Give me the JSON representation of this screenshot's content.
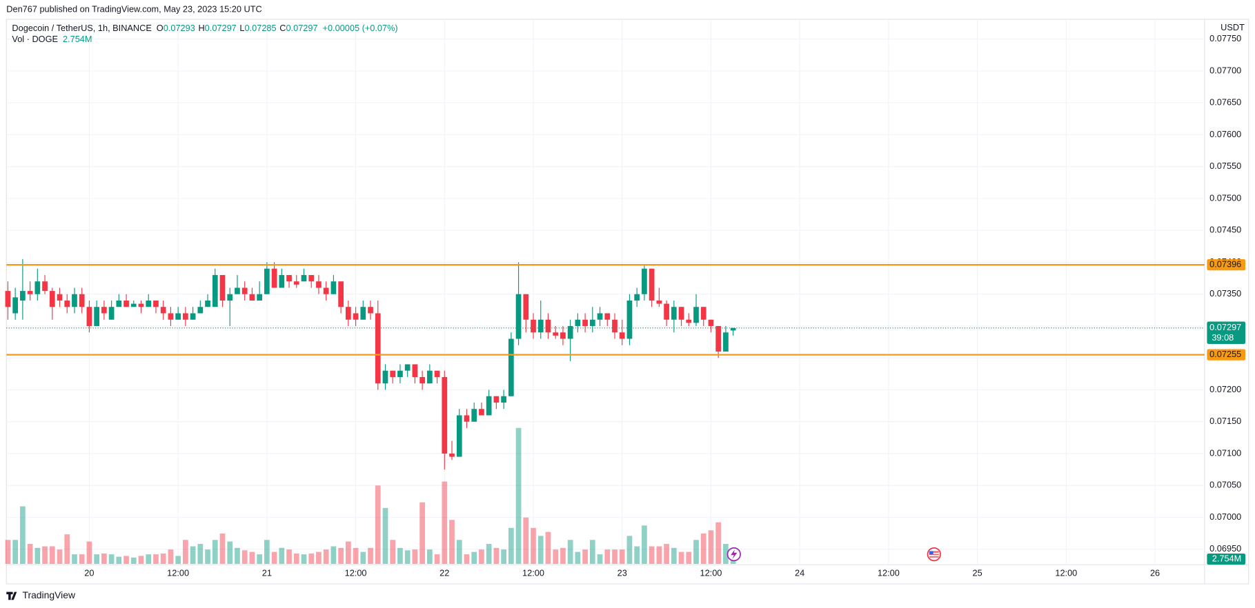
{
  "header": {
    "published": "Den767 published on TradingView.com, May 23, 2023 15:20 UTC",
    "footer": "TradingView"
  },
  "chart_data": {
    "type": "candlestick",
    "legend": {
      "symbol": "Dogecoin / TetherUS, 1h, BINANCE",
      "o": "O",
      "h": "H",
      "l": "L",
      "c": "C",
      "change": "+0.00005 (+0.07%)",
      "volume_name": "Vol · DOGE",
      "volume_last_label": "2.754M"
    },
    "currency": "USDT",
    "countdown": "39:08",
    "colors": {
      "up": "#089981",
      "down": "#f23645",
      "level": "#f59a12"
    },
    "ylim": [
      0.06927,
      0.07781
    ],
    "yticks": [
      {
        "value": 0.0695,
        "label": "0.06950"
      },
      {
        "value": 0.07,
        "label": "0.07000"
      },
      {
        "value": 0.0705,
        "label": "0.07050"
      },
      {
        "value": 0.071,
        "label": "0.07100"
      },
      {
        "value": 0.0715,
        "label": "0.07150"
      },
      {
        "value": 0.072,
        "label": "0.07200"
      },
      {
        "value": 0.0725,
        "label": "0.07250"
      },
      {
        "value": 0.073,
        "label": "0.07300"
      },
      {
        "value": 0.0735,
        "label": "0.07350"
      },
      {
        "value": 0.074,
        "label": "0.07400"
      },
      {
        "value": 0.0745,
        "label": "0.07450"
      },
      {
        "value": 0.075,
        "label": "0.07500"
      },
      {
        "value": 0.0755,
        "label": "0.07550"
      },
      {
        "value": 0.076,
        "label": "0.07600"
      },
      {
        "value": 0.0765,
        "label": "0.07650"
      },
      {
        "value": 0.077,
        "label": "0.07700"
      },
      {
        "value": 0.0775,
        "label": "0.07750"
      }
    ],
    "xlim": [
      12.8,
      174.7
    ],
    "xticks": [
      {
        "value": 24,
        "label": "20"
      },
      {
        "value": 36,
        "label": "12:00"
      },
      {
        "value": 48,
        "label": "21"
      },
      {
        "value": 60,
        "label": "12:00"
      },
      {
        "value": 72,
        "label": "22"
      },
      {
        "value": 84,
        "label": "12:00"
      },
      {
        "value": 96,
        "label": "23"
      },
      {
        "value": 108,
        "label": "12:00"
      },
      {
        "value": 120,
        "label": "24"
      },
      {
        "value": 132,
        "label": "12:00"
      },
      {
        "value": 144,
        "label": "25"
      },
      {
        "value": 156,
        "label": "12:00"
      },
      {
        "value": 168,
        "label": "26"
      }
    ],
    "levels": [
      0.07396,
      0.07255
    ],
    "x": [
      13,
      14,
      15,
      16,
      17,
      18,
      19,
      20,
      21,
      22,
      23,
      24,
      25,
      26,
      27,
      28,
      29,
      30,
      31,
      32,
      33,
      34,
      35,
      36,
      37,
      38,
      39,
      40,
      41,
      42,
      43,
      44,
      45,
      46,
      47,
      48,
      49,
      50,
      51,
      52,
      53,
      54,
      55,
      56,
      57,
      58,
      59,
      60,
      61,
      62,
      63,
      64,
      65,
      66,
      67,
      68,
      69,
      70,
      71,
      72,
      73,
      74,
      75,
      76,
      77,
      78,
      79,
      80,
      81,
      82,
      83,
      84,
      85,
      86,
      87,
      88,
      89,
      90,
      91,
      92,
      93,
      94,
      95,
      96,
      97,
      98,
      99,
      100,
      101,
      102,
      103,
      104,
      105,
      106,
      107,
      108,
      109,
      110,
      111
    ],
    "open": [
      0.07355,
      0.0732,
      0.0734,
      0.07355,
      0.0735,
      0.0737,
      0.07355,
      0.0735,
      0.0734,
      0.0733,
      0.0735,
      0.0733,
      0.073,
      0.0733,
      0.0731,
      0.0733,
      0.0734,
      0.0733,
      0.07335,
      0.0733,
      0.0734,
      0.0733,
      0.0732,
      0.0731,
      0.0732,
      0.0731,
      0.0732,
      0.0733,
      0.0733,
      0.0738,
      0.0734,
      0.0735,
      0.0736,
      0.0735,
      0.0734,
      0.0735,
      0.0739,
      0.0736,
      0.0738,
      0.0737,
      0.0737,
      0.0738,
      0.0737,
      0.0736,
      0.0735,
      0.0737,
      0.0733,
      0.0732,
      0.0731,
      0.0733,
      0.0732,
      0.0721,
      0.0723,
      0.0722,
      0.0723,
      0.0724,
      0.0722,
      0.0721,
      0.0723,
      0.0722,
      0.071,
      0.07095,
      0.0716,
      0.0715,
      0.0717,
      0.0716,
      0.0719,
      0.0718,
      0.0719,
      0.0728,
      0.0735,
      0.0731,
      0.0729,
      0.0731,
      0.0729,
      0.0729,
      0.0728,
      0.073,
      0.0731,
      0.073,
      0.0731,
      0.0732,
      0.0731,
      0.0729,
      0.0728,
      0.0734,
      0.0735,
      0.0739,
      0.0734,
      0.07335,
      0.0731,
      0.0733,
      0.0731,
      0.07305,
      0.0733,
      0.0731,
      0.073,
      0.0726,
      0.07293
    ],
    "high": [
      0.0737,
      0.0736,
      0.07405,
      0.0737,
      0.0739,
      0.0738,
      0.0736,
      0.0736,
      0.0735,
      0.0736,
      0.0736,
      0.0734,
      0.0734,
      0.0734,
      0.0734,
      0.0735,
      0.0735,
      0.0734,
      0.0734,
      0.0735,
      0.0734,
      0.0734,
      0.0733,
      0.0733,
      0.0733,
      0.0733,
      0.0734,
      0.0735,
      0.0739,
      0.0738,
      0.0736,
      0.0738,
      0.0737,
      0.0736,
      0.0737,
      0.074,
      0.074,
      0.0739,
      0.0738,
      0.0738,
      0.0739,
      0.0738,
      0.0738,
      0.0737,
      0.0738,
      0.0737,
      0.0734,
      0.0733,
      0.0734,
      0.0734,
      0.0734,
      0.0724,
      0.0723,
      0.0724,
      0.0724,
      0.0724,
      0.0723,
      0.0724,
      0.0723,
      0.0723,
      0.0712,
      0.0717,
      0.0717,
      0.0718,
      0.0718,
      0.072,
      0.0719,
      0.072,
      0.0729,
      0.074,
      0.0735,
      0.0732,
      0.0734,
      0.0732,
      0.073,
      0.073,
      0.0731,
      0.0732,
      0.0732,
      0.0733,
      0.0733,
      0.0732,
      0.0732,
      0.0731,
      0.0735,
      0.0736,
      0.07395,
      0.0739,
      0.0736,
      0.0734,
      0.0734,
      0.0733,
      0.0732,
      0.0735,
      0.0733,
      0.0731,
      0.073,
      0.073,
      0.07297
    ],
    "low": [
      0.0731,
      0.0731,
      0.0731,
      0.0734,
      0.0734,
      0.0735,
      0.0731,
      0.0733,
      0.0732,
      0.0732,
      0.0732,
      0.0729,
      0.073,
      0.0731,
      0.0731,
      0.0733,
      0.0733,
      0.0733,
      0.0732,
      0.0733,
      0.0732,
      0.0731,
      0.073,
      0.0731,
      0.073,
      0.0731,
      0.0732,
      0.0733,
      0.0733,
      0.0733,
      0.073,
      0.0735,
      0.0734,
      0.0734,
      0.0734,
      0.0735,
      0.0736,
      0.0736,
      0.0736,
      0.0736,
      0.0737,
      0.0736,
      0.0735,
      0.0734,
      0.0735,
      0.0732,
      0.073,
      0.073,
      0.0731,
      0.0731,
      0.072,
      0.072,
      0.0721,
      0.0721,
      0.0722,
      0.0721,
      0.072,
      0.0721,
      0.0721,
      0.07075,
      0.0709,
      0.071,
      0.0714,
      0.0715,
      0.0716,
      0.0716,
      0.0717,
      0.0717,
      0.0719,
      0.0727,
      0.0729,
      0.0728,
      0.0728,
      0.0728,
      0.0728,
      0.0727,
      0.07245,
      0.0729,
      0.0729,
      0.0729,
      0.073,
      0.073,
      0.0728,
      0.0727,
      0.0727,
      0.0733,
      0.0734,
      0.0733,
      0.0733,
      0.073,
      0.0729,
      0.073,
      0.073,
      0.073,
      0.073,
      0.0729,
      0.0725,
      0.0726,
      0.07285
    ],
    "close": [
      0.0733,
      0.07345,
      0.07355,
      0.0735,
      0.0737,
      0.07355,
      0.0733,
      0.0734,
      0.0733,
      0.0735,
      0.0733,
      0.073,
      0.0733,
      0.0732,
      0.0733,
      0.0734,
      0.0733,
      0.07335,
      0.0733,
      0.0734,
      0.0733,
      0.0732,
      0.0731,
      0.0732,
      0.0731,
      0.0732,
      0.0733,
      0.0734,
      0.0738,
      0.0734,
      0.0735,
      0.0736,
      0.0735,
      0.0734,
      0.0735,
      0.0739,
      0.0736,
      0.0738,
      0.0737,
      0.07365,
      0.0738,
      0.0737,
      0.0736,
      0.0735,
      0.0737,
      0.0733,
      0.0731,
      0.0731,
      0.0733,
      0.0732,
      0.0721,
      0.0723,
      0.0722,
      0.0723,
      0.0724,
      0.0722,
      0.0721,
      0.0723,
      0.0722,
      0.071,
      0.07095,
      0.0716,
      0.0715,
      0.0717,
      0.0716,
      0.0719,
      0.0718,
      0.0719,
      0.0728,
      0.0735,
      0.0731,
      0.0729,
      0.0731,
      0.0729,
      0.07285,
      0.0728,
      0.073,
      0.0731,
      0.073,
      0.0731,
      0.0732,
      0.0731,
      0.0729,
      0.0728,
      0.0734,
      0.0735,
      0.0739,
      0.0734,
      0.07335,
      0.0731,
      0.0733,
      0.0731,
      0.07305,
      0.0733,
      0.0731,
      0.073,
      0.0726,
      0.0729,
      0.07297
    ],
    "volume": [
      12,
      12,
      28.8,
      10,
      8,
      8.8,
      8.8,
      7.2,
      14.8,
      4.8,
      4.8,
      11.2,
      4.8,
      5.2,
      4.8,
      3.6,
      4,
      3.2,
      4,
      4.8,
      4.8,
      5.2,
      7.2,
      4,
      12,
      8.8,
      10,
      7.2,
      12,
      15.2,
      11.2,
      8,
      6.8,
      6,
      4.8,
      12,
      6,
      8,
      7.2,
      5.2,
      4.8,
      5.2,
      6,
      7.2,
      8.8,
      8,
      11.2,
      8,
      6,
      8,
      39.2,
      28,
      12,
      8,
      6.8,
      7.2,
      30.8,
      7.2,
      4.8,
      41.2,
      22,
      12,
      4.8,
      6,
      7.2,
      10,
      8,
      7.2,
      18,
      68,
      23.2,
      18,
      14,
      16,
      7.2,
      8,
      12,
      6,
      7.2,
      12,
      4.8,
      7.2,
      7.2,
      7.2,
      14,
      8.8,
      19.2,
      8.8,
      8.8,
      10,
      8,
      6,
      6,
      12,
      15.2,
      16.8,
      20.8,
      10,
      2.754
    ]
  }
}
